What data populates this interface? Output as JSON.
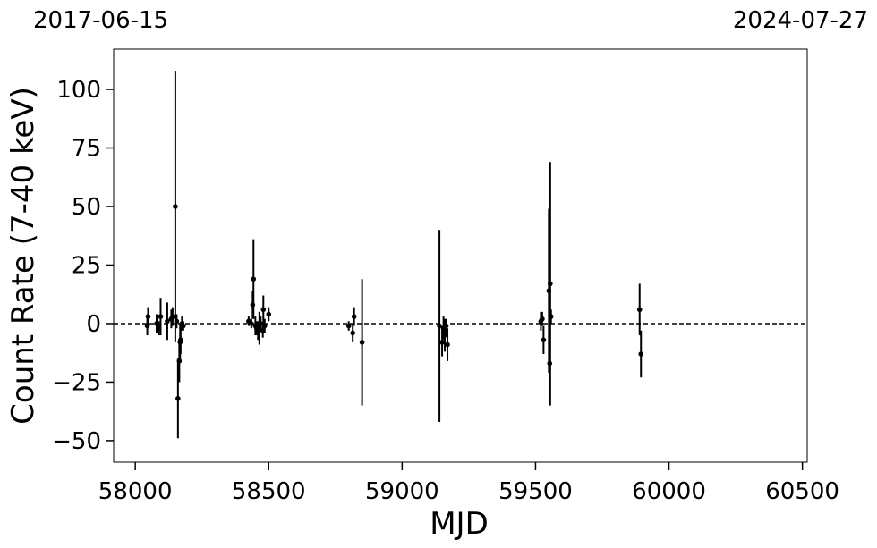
{
  "chart_data": {
    "type": "errorbar",
    "xlabel": "MJD",
    "ylabel": "Count Rate (7-40 keV)",
    "xlim": [
      57919,
      60518
    ],
    "ylim": [
      -59.2,
      117.2
    ],
    "xticks": [
      58000,
      58500,
      59000,
      59500,
      60000,
      60500
    ],
    "yticks": [
      {
        "value": -50,
        "label": "−50"
      },
      {
        "value": -25,
        "label": "−25"
      },
      0,
      25,
      50,
      75,
      100
    ],
    "x2ticks": [
      {
        "value": 57919,
        "label": "2017-06-15"
      },
      {
        "value": 60518,
        "label": "2024-07-27"
      }
    ],
    "hline": 0,
    "color": "#000000",
    "series": [
      {
        "x": [
          58045,
          58048,
          58080,
          58088,
          58095,
          58120,
          58135,
          58140,
          58150,
          58155,
          58160,
          58165,
          58168,
          58170,
          58175,
          58180,
          58425,
          58435,
          58440,
          58443,
          58450,
          58455,
          58460,
          58465,
          58470,
          58478,
          58480,
          58485,
          58500,
          58800,
          58815,
          58820,
          58850,
          59140,
          59150,
          59155,
          59160,
          59165,
          59170,
          59520,
          59525,
          59530,
          59550,
          59555,
          59553,
          59558,
          59890,
          59895
        ],
        "values": [
          -1,
          3,
          0,
          -2,
          3,
          1,
          2,
          3,
          50,
          1,
          -32,
          -16,
          -8,
          -7,
          0,
          -1,
          1,
          0,
          8,
          19,
          -1,
          -2,
          -3,
          -2,
          0,
          -3,
          6,
          -1,
          4,
          -1,
          -4,
          3,
          -8,
          -1,
          -8,
          -2,
          -5,
          -1,
          -9,
          1,
          2,
          -7,
          14,
          17,
          -17,
          3,
          6,
          -13
        ],
        "errors": [
          4,
          4,
          4,
          3,
          8,
          8,
          4,
          4,
          58,
          3,
          17,
          9,
          8,
          6,
          3,
          2,
          2,
          2,
          6,
          17,
          4,
          3,
          4,
          7,
          3,
          3,
          6,
          3,
          3,
          2,
          4,
          4,
          27,
          41,
          6,
          5,
          7,
          3,
          7,
          4,
          3,
          6,
          35,
          52,
          17,
          3,
          11,
          10
        ]
      }
    ]
  }
}
